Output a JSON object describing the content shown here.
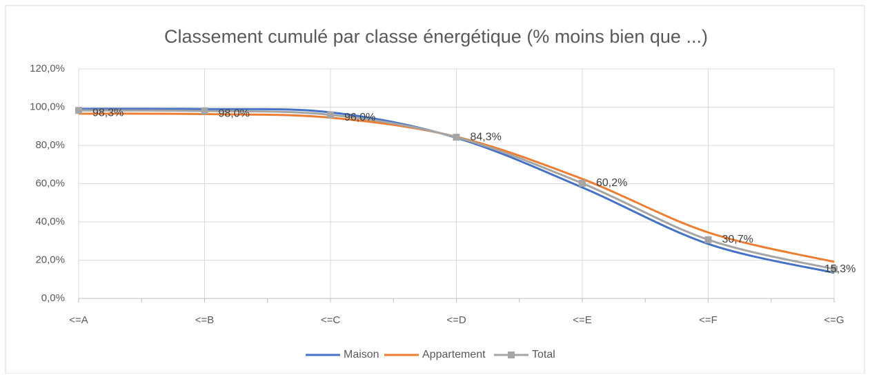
{
  "chart_data": {
    "type": "line",
    "title": "Classement cumulé par classe énergétique (% moins bien que ...)",
    "categories": [
      "<=A",
      "<=B",
      "<=C",
      "<=D",
      "<=E",
      "<=F",
      "<=G"
    ],
    "series": [
      {
        "name": "Maison",
        "color": "#4472c4",
        "values": [
          99.1,
          99.0,
          97.3,
          84.0,
          58.0,
          28.5,
          13.4
        ]
      },
      {
        "name": "Appartement",
        "color": "#ed7d31",
        "values": [
          96.6,
          96.4,
          94.5,
          84.5,
          62.5,
          34.5,
          19.1
        ]
      },
      {
        "name": "Total",
        "color": "#a5a5a5",
        "marker": "square",
        "values": [
          98.3,
          98.0,
          96.0,
          84.3,
          60.2,
          30.7,
          15.3
        ],
        "value_labels": [
          "98,3%",
          "98,0%",
          "96,0%",
          "84,3%",
          "60,2%",
          "30,7%",
          "15,3%"
        ]
      }
    ],
    "ylim": [
      0,
      120
    ],
    "yticks": [
      {
        "value": 0,
        "label": "0,0%"
      },
      {
        "value": 20,
        "label": "20,0%"
      },
      {
        "value": 40,
        "label": "40,0%"
      },
      {
        "value": 60,
        "label": "60,0%"
      },
      {
        "value": 80,
        "label": "80,0%"
      },
      {
        "value": 100,
        "label": "100,0%"
      },
      {
        "value": 120,
        "label": "120,0%"
      }
    ],
    "grid": true,
    "smooth": true,
    "legend": "bottom"
  }
}
